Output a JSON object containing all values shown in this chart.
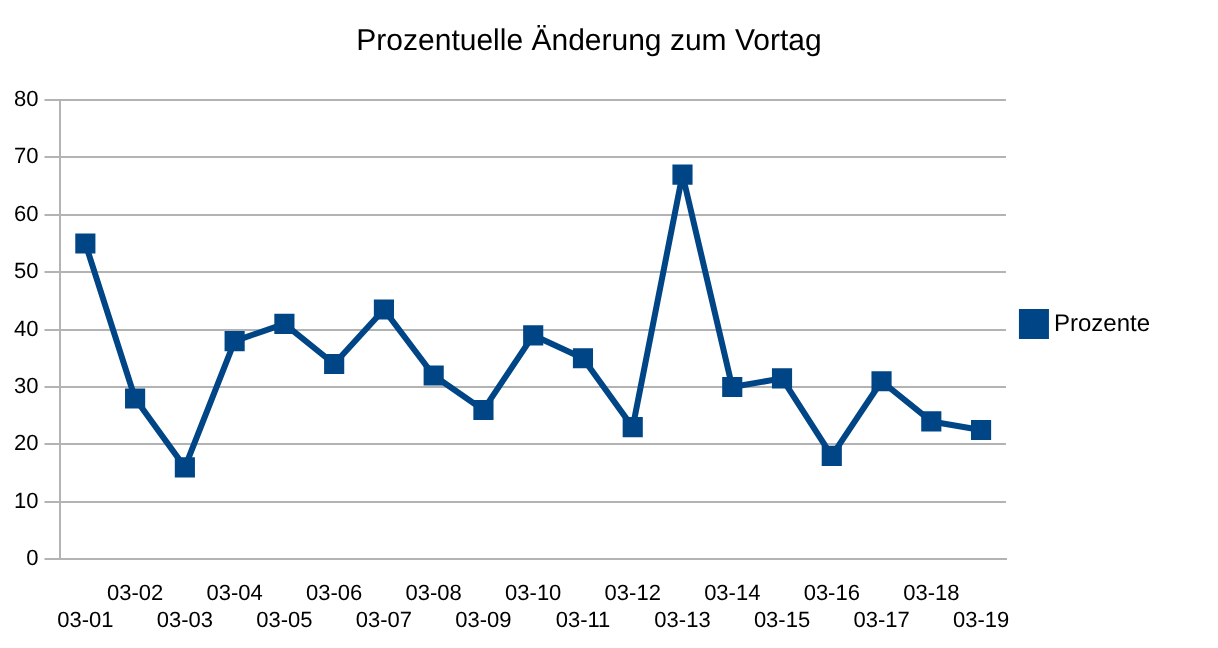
{
  "chart_data": {
    "type": "line",
    "title": "Prozentuelle Änderung zum Vortag",
    "categories": [
      "03-01",
      "03-02",
      "03-03",
      "03-04",
      "03-05",
      "03-06",
      "03-07",
      "03-08",
      "03-09",
      "03-10",
      "03-11",
      "03-12",
      "03-13",
      "03-14",
      "03-15",
      "03-16",
      "03-17",
      "03-18",
      "03-19"
    ],
    "series": [
      {
        "name": "Prozente",
        "color": "#004586",
        "values": [
          55,
          28,
          16,
          38,
          41,
          34,
          43.5,
          32,
          26,
          39,
          35,
          23,
          67,
          30,
          31.5,
          18,
          31,
          24,
          22.5
        ]
      }
    ],
    "ylim": [
      0,
      80
    ],
    "yticks": [
      0,
      10,
      20,
      30,
      40,
      50,
      60,
      70,
      80
    ],
    "grid": "y",
    "legend": "right",
    "marker": "square",
    "line_style": "solid"
  }
}
